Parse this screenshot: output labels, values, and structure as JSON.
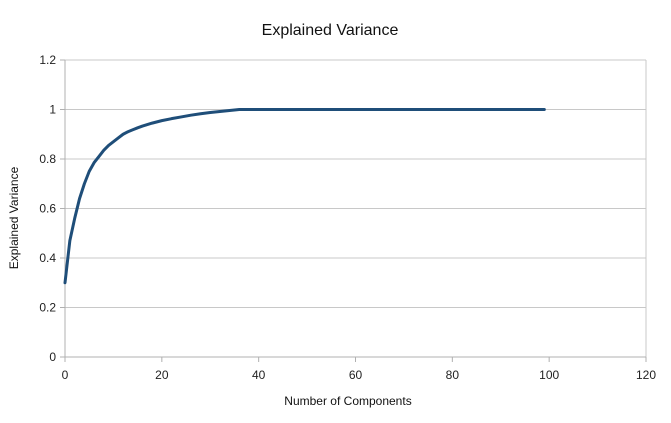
{
  "chart_data": {
    "type": "line",
    "title": "Explained Variance",
    "xlabel": "Number of Components",
    "ylabel": "Explained Variance",
    "xlim": [
      0,
      120
    ],
    "ylim": [
      0,
      1.2
    ],
    "x_ticks": [
      0,
      20,
      40,
      60,
      80,
      100,
      120
    ],
    "y_ticks": [
      0,
      0.2,
      0.4,
      0.6,
      0.8,
      1,
      1.2
    ],
    "grid": true,
    "legend": "none",
    "series": [
      {
        "color": "#1f4e79",
        "x": [
          0,
          1,
          2,
          3,
          4,
          5,
          6,
          7,
          8,
          9,
          10,
          11,
          12,
          13,
          14,
          15,
          16,
          17,
          18,
          19,
          20,
          22,
          24,
          26,
          28,
          30,
          32,
          34,
          36,
          40,
          50,
          60,
          70,
          80,
          90,
          99
        ],
        "y": [
          0.3,
          0.47,
          0.56,
          0.64,
          0.7,
          0.75,
          0.785,
          0.81,
          0.835,
          0.855,
          0.87,
          0.885,
          0.9,
          0.91,
          0.918,
          0.926,
          0.933,
          0.939,
          0.945,
          0.95,
          0.955,
          0.963,
          0.97,
          0.977,
          0.983,
          0.988,
          0.992,
          0.996,
          1.0,
          1.0,
          1.0,
          1.0,
          1.0,
          1.0,
          1.0,
          1.0
        ]
      }
    ]
  }
}
